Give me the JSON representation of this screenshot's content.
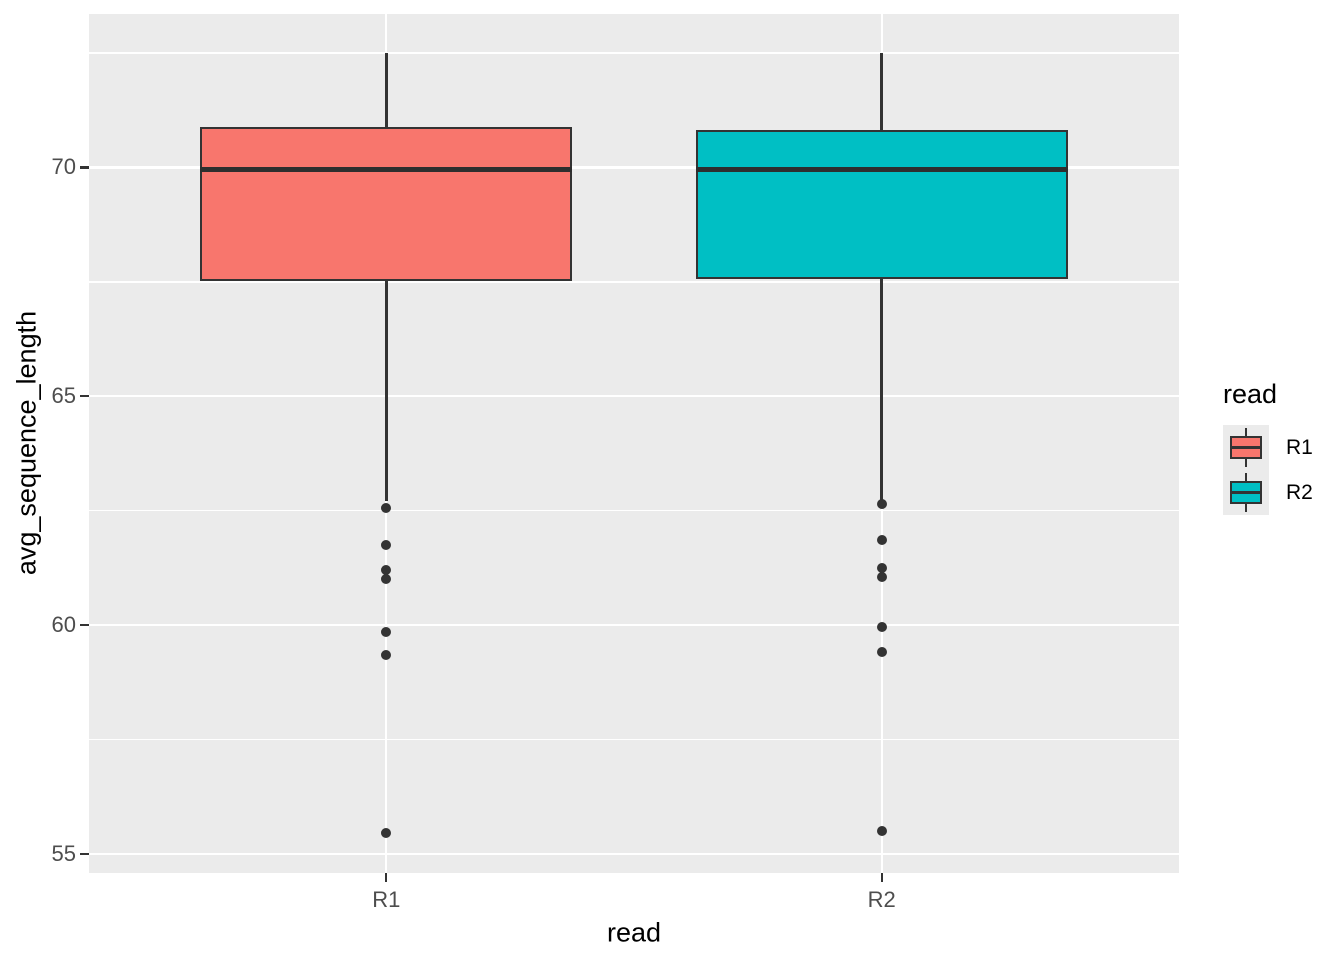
{
  "chart_data": {
    "type": "boxplot",
    "title": "",
    "xlabel": "read",
    "ylabel": "avg_sequence_length",
    "categories": [
      "R1",
      "R2"
    ],
    "ylim": [
      54.58,
      73.35
    ],
    "y_major_ticks": [
      55,
      60,
      65,
      70
    ],
    "y_minor_gridlines": [
      57.5,
      62.5,
      67.5,
      72.5
    ],
    "grid": "on",
    "panel_background": "#EBEBEB",
    "series": [
      {
        "name": "R1",
        "fill": "#F8766D",
        "whisker_high": 72.5,
        "q3": 70.88,
        "median": 69.95,
        "q1": 67.52,
        "whisker_low": 62.7,
        "outliers": [
          62.55,
          61.75,
          61.2,
          61.0,
          59.85,
          59.35,
          55.45
        ]
      },
      {
        "name": "R2",
        "fill": "#00BFC4",
        "whisker_high": 72.5,
        "q3": 70.82,
        "median": 69.95,
        "q1": 67.55,
        "whisker_low": 62.7,
        "outliers": [
          62.65,
          61.85,
          61.25,
          61.05,
          59.95,
          59.4,
          55.5
        ]
      }
    ],
    "legend": {
      "title": "read",
      "position": "right",
      "entries": [
        {
          "label": "R1",
          "fill": "#F8766D"
        },
        {
          "label": "R2",
          "fill": "#00BFC4"
        }
      ]
    }
  },
  "style": {
    "figure_bg": "#FFFFFF",
    "panel_bg": "#EBEBEB",
    "grid_color": "#FFFFFF",
    "box_line_color": "#333333",
    "outlier_color": "#333333",
    "tick_label_color": "#4D4D4D",
    "axis_title_color": "#000000",
    "legend_key_bg": "#EBEBEB"
  }
}
